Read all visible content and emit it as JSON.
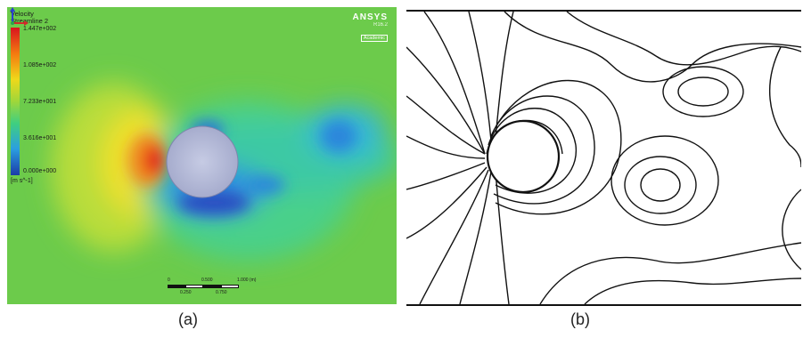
{
  "panel_a": {
    "legend": {
      "title_line1": "Velocity",
      "title_line2": "Streamline 2",
      "values": [
        "1.447e+002",
        "1.085e+002",
        "7.233e+001",
        "3.616e+001",
        "0.000e+000"
      ],
      "unit": "[m s^-1]"
    },
    "brand": {
      "name": "ANSYS",
      "version": "R16.2",
      "edition": "Academic"
    },
    "scale_bar": {
      "top_labels": [
        "0",
        "0.500",
        "1.000 (m)"
      ],
      "bottom_labels": [
        "0.250",
        "0.750"
      ]
    }
  },
  "captions": {
    "a": "(a)",
    "b": "(b)"
  }
}
